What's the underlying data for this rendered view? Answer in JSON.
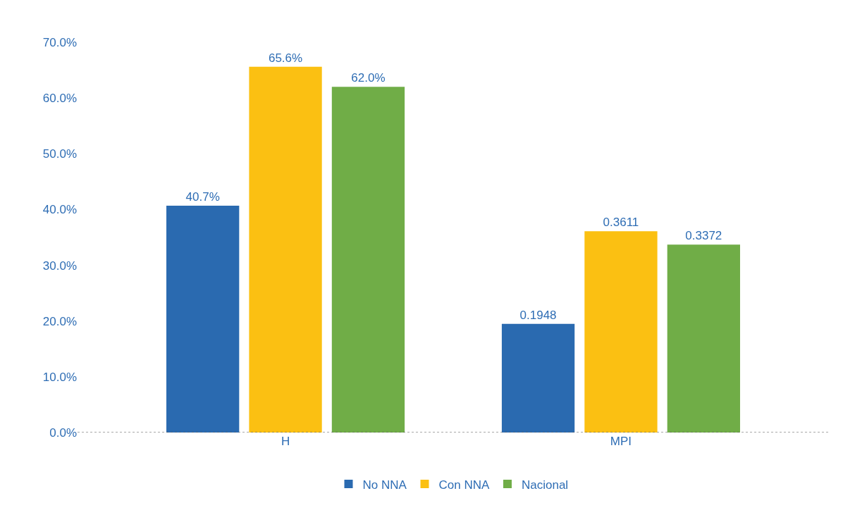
{
  "chart_data": {
    "type": "bar",
    "categories": [
      "H",
      "MPI"
    ],
    "series": [
      {
        "name": "No NNA",
        "color": "#2a6ab0",
        "values": [
          0.407,
          0.1948
        ],
        "value_labels": [
          "40.7%",
          "0.1948"
        ]
      },
      {
        "name": "Con NNA",
        "color": "#fbc012",
        "values": [
          0.656,
          0.3611
        ],
        "value_labels": [
          "65.6%",
          "0.3611"
        ]
      },
      {
        "name": "Nacional",
        "color": "#70ad47",
        "values": [
          0.62,
          0.3372
        ],
        "value_labels": [
          "62.0%",
          "0.3372"
        ]
      }
    ],
    "ylim": [
      0,
      0.7
    ],
    "yticks": [
      {
        "value": 0,
        "label": "0.0%"
      },
      {
        "value": 0.1,
        "label": "10.0%"
      },
      {
        "value": 0.2,
        "label": "20.0%"
      },
      {
        "value": 0.3,
        "label": "30.0%"
      },
      {
        "value": 0.4,
        "label": "40.0%"
      },
      {
        "value": 0.5,
        "label": "50.0%"
      },
      {
        "value": 0.6,
        "label": "60.0%"
      },
      {
        "value": 0.7,
        "label": "70.0%"
      }
    ],
    "legend": "bottom"
  }
}
